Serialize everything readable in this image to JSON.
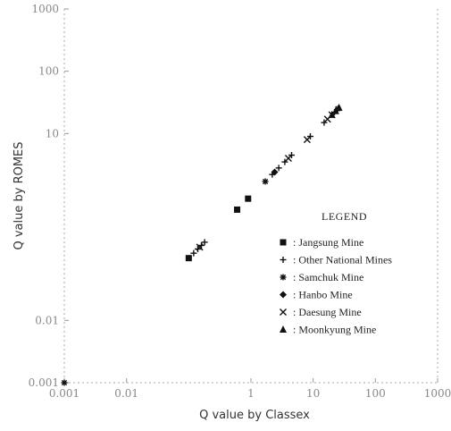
{
  "chart_data": {
    "type": "scatter",
    "xscale": "log",
    "yscale": "log",
    "xlim": [
      0.001,
      1000
    ],
    "ylim": [
      0.001,
      1000
    ],
    "xticks": [
      {
        "value": 0.001,
        "label": "0.001"
      },
      {
        "value": 0.01,
        "label": "0.01"
      },
      {
        "value": 1,
        "label": "1"
      },
      {
        "value": 10,
        "label": "10"
      },
      {
        "value": 100,
        "label": "100"
      },
      {
        "value": 1000,
        "label": "1000"
      }
    ],
    "yticks": [
      {
        "value": 0.001,
        "label": "0.001"
      },
      {
        "value": 0.01,
        "label": "0.01"
      },
      {
        "value": 10,
        "label": "10"
      },
      {
        "value": 100,
        "label": "100"
      },
      {
        "value": 1000,
        "label": "1000"
      }
    ],
    "xlabel": "Q value by Classex",
    "ylabel": "Q value by ROMES",
    "legend": {
      "title": "LEGEND",
      "position": "right"
    },
    "series": [
      {
        "name": ": Jangsung Mine",
        "marker": "square",
        "points": [
          {
            "x": 0.1,
            "y": 0.1
          },
          {
            "x": 0.6,
            "y": 0.6
          },
          {
            "x": 0.9,
            "y": 0.9
          }
        ]
      },
      {
        "name": ": Other National Mines",
        "marker": "plus",
        "points": [
          {
            "x": 0.12,
            "y": 0.12
          },
          {
            "x": 0.14,
            "y": 0.14
          },
          {
            "x": 0.16,
            "y": 0.16
          },
          {
            "x": 0.18,
            "y": 0.18
          },
          {
            "x": 2.2,
            "y": 2.2
          },
          {
            "x": 2.8,
            "y": 2.8
          },
          {
            "x": 3.5,
            "y": 3.5
          },
          {
            "x": 4.5,
            "y": 4.5
          },
          {
            "x": 9,
            "y": 9
          },
          {
            "x": 15,
            "y": 15
          },
          {
            "x": 22,
            "y": 22
          }
        ]
      },
      {
        "name": ": Samchuk Mine",
        "marker": "asterisk",
        "points": [
          {
            "x": 0.001,
            "y": 0.001
          },
          {
            "x": 1.7,
            "y": 1.7
          },
          {
            "x": 25,
            "y": 25
          }
        ]
      },
      {
        "name": ": Hanbo Mine",
        "marker": "diamond",
        "points": [
          {
            "x": 2.4,
            "y": 2.4
          }
        ]
      },
      {
        "name": ": Daesung Mine",
        "marker": "x",
        "points": [
          {
            "x": 0.15,
            "y": 0.15
          },
          {
            "x": 4,
            "y": 4
          },
          {
            "x": 8,
            "y": 8
          },
          {
            "x": 17,
            "y": 17
          },
          {
            "x": 20,
            "y": 20
          }
        ]
      },
      {
        "name": ": Moonkyung Mine",
        "marker": "triangle",
        "points": [
          {
            "x": 20,
            "y": 20
          },
          {
            "x": 23,
            "y": 23
          },
          {
            "x": 26,
            "y": 26
          }
        ]
      }
    ]
  }
}
